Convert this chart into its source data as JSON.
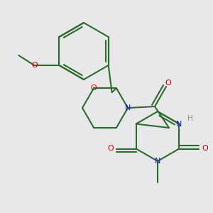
{
  "bg_color": "#e8e8ea",
  "bond_color": "#2d6b2d",
  "N_color": "#1a1acc",
  "O_color": "#cc0000",
  "H_color": "#909090",
  "lw": 1.5,
  "figsize": [
    3.0,
    3.0
  ],
  "dpi": 100,
  "xlim": [
    0,
    300
  ],
  "ylim": [
    0,
    300
  ]
}
